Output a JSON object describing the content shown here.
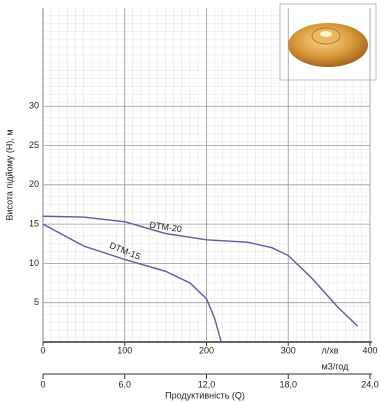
{
  "chart_data": {
    "type": "line",
    "y_label": "Висота підйому (Н), м",
    "x_label": "Продуктивність (Q)",
    "x_unit": "л/хв",
    "x2_unit": "м3/год",
    "xlim": [
      0,
      400
    ],
    "xticks": [
      0,
      100,
      200,
      300,
      400
    ],
    "x2lim": [
      0,
      24
    ],
    "x2ticks": [
      {
        "value": 0,
        "label": "0"
      },
      {
        "value": 6,
        "label": "6,0"
      },
      {
        "value": 12,
        "label": "12,0"
      },
      {
        "value": 18,
        "label": "18,0"
      },
      {
        "value": 24,
        "label": "24,0"
      }
    ],
    "ylim": [
      0,
      42.5
    ],
    "yticks": [
      5,
      10,
      15,
      20,
      25,
      30
    ],
    "grid": true,
    "series": [
      {
        "name": "DTM-20",
        "color": "#5b5ca8",
        "x": [
          0,
          50,
          100,
          150,
          200,
          250,
          280,
          300,
          330,
          360,
          385
        ],
        "values": [
          16,
          15.9,
          15.3,
          13.8,
          13,
          12.7,
          12,
          11,
          8,
          4.5,
          2
        ]
      },
      {
        "name": "DTM-15",
        "color": "#5b5ca8",
        "x": [
          0,
          50,
          100,
          150,
          180,
          200,
          210,
          218
        ],
        "values": [
          15,
          12.2,
          10.5,
          9,
          7.5,
          5.5,
          3,
          0
        ]
      }
    ]
  }
}
